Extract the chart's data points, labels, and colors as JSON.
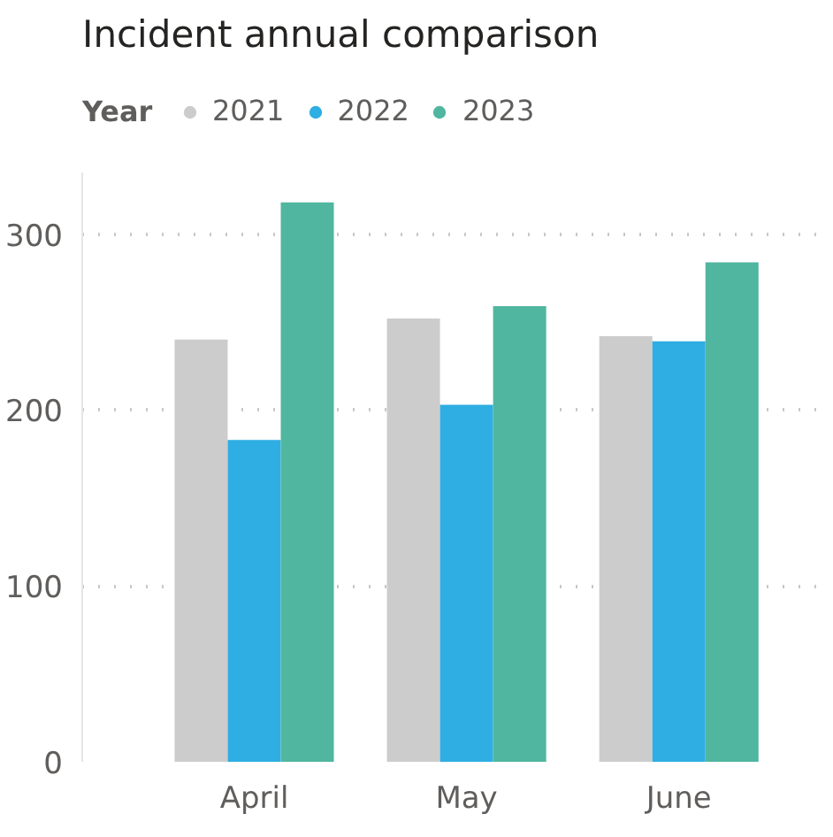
{
  "chart_data": {
    "type": "bar",
    "title": "Incident annual comparison",
    "legend_title": "Year",
    "categories": [
      "April",
      "May",
      "June"
    ],
    "series": [
      {
        "name": "2021",
        "color": "#cccccc",
        "values": [
          240,
          252,
          242
        ]
      },
      {
        "name": "2022",
        "color": "#2eaee2",
        "values": [
          183,
          203,
          239
        ]
      },
      {
        "name": "2023",
        "color": "#50b6a0",
        "values": [
          318,
          259,
          284
        ]
      }
    ],
    "ylim": [
      0,
      335
    ],
    "yticks": [
      0,
      100,
      200,
      300
    ],
    "grid": "y",
    "legend": "top left"
  }
}
